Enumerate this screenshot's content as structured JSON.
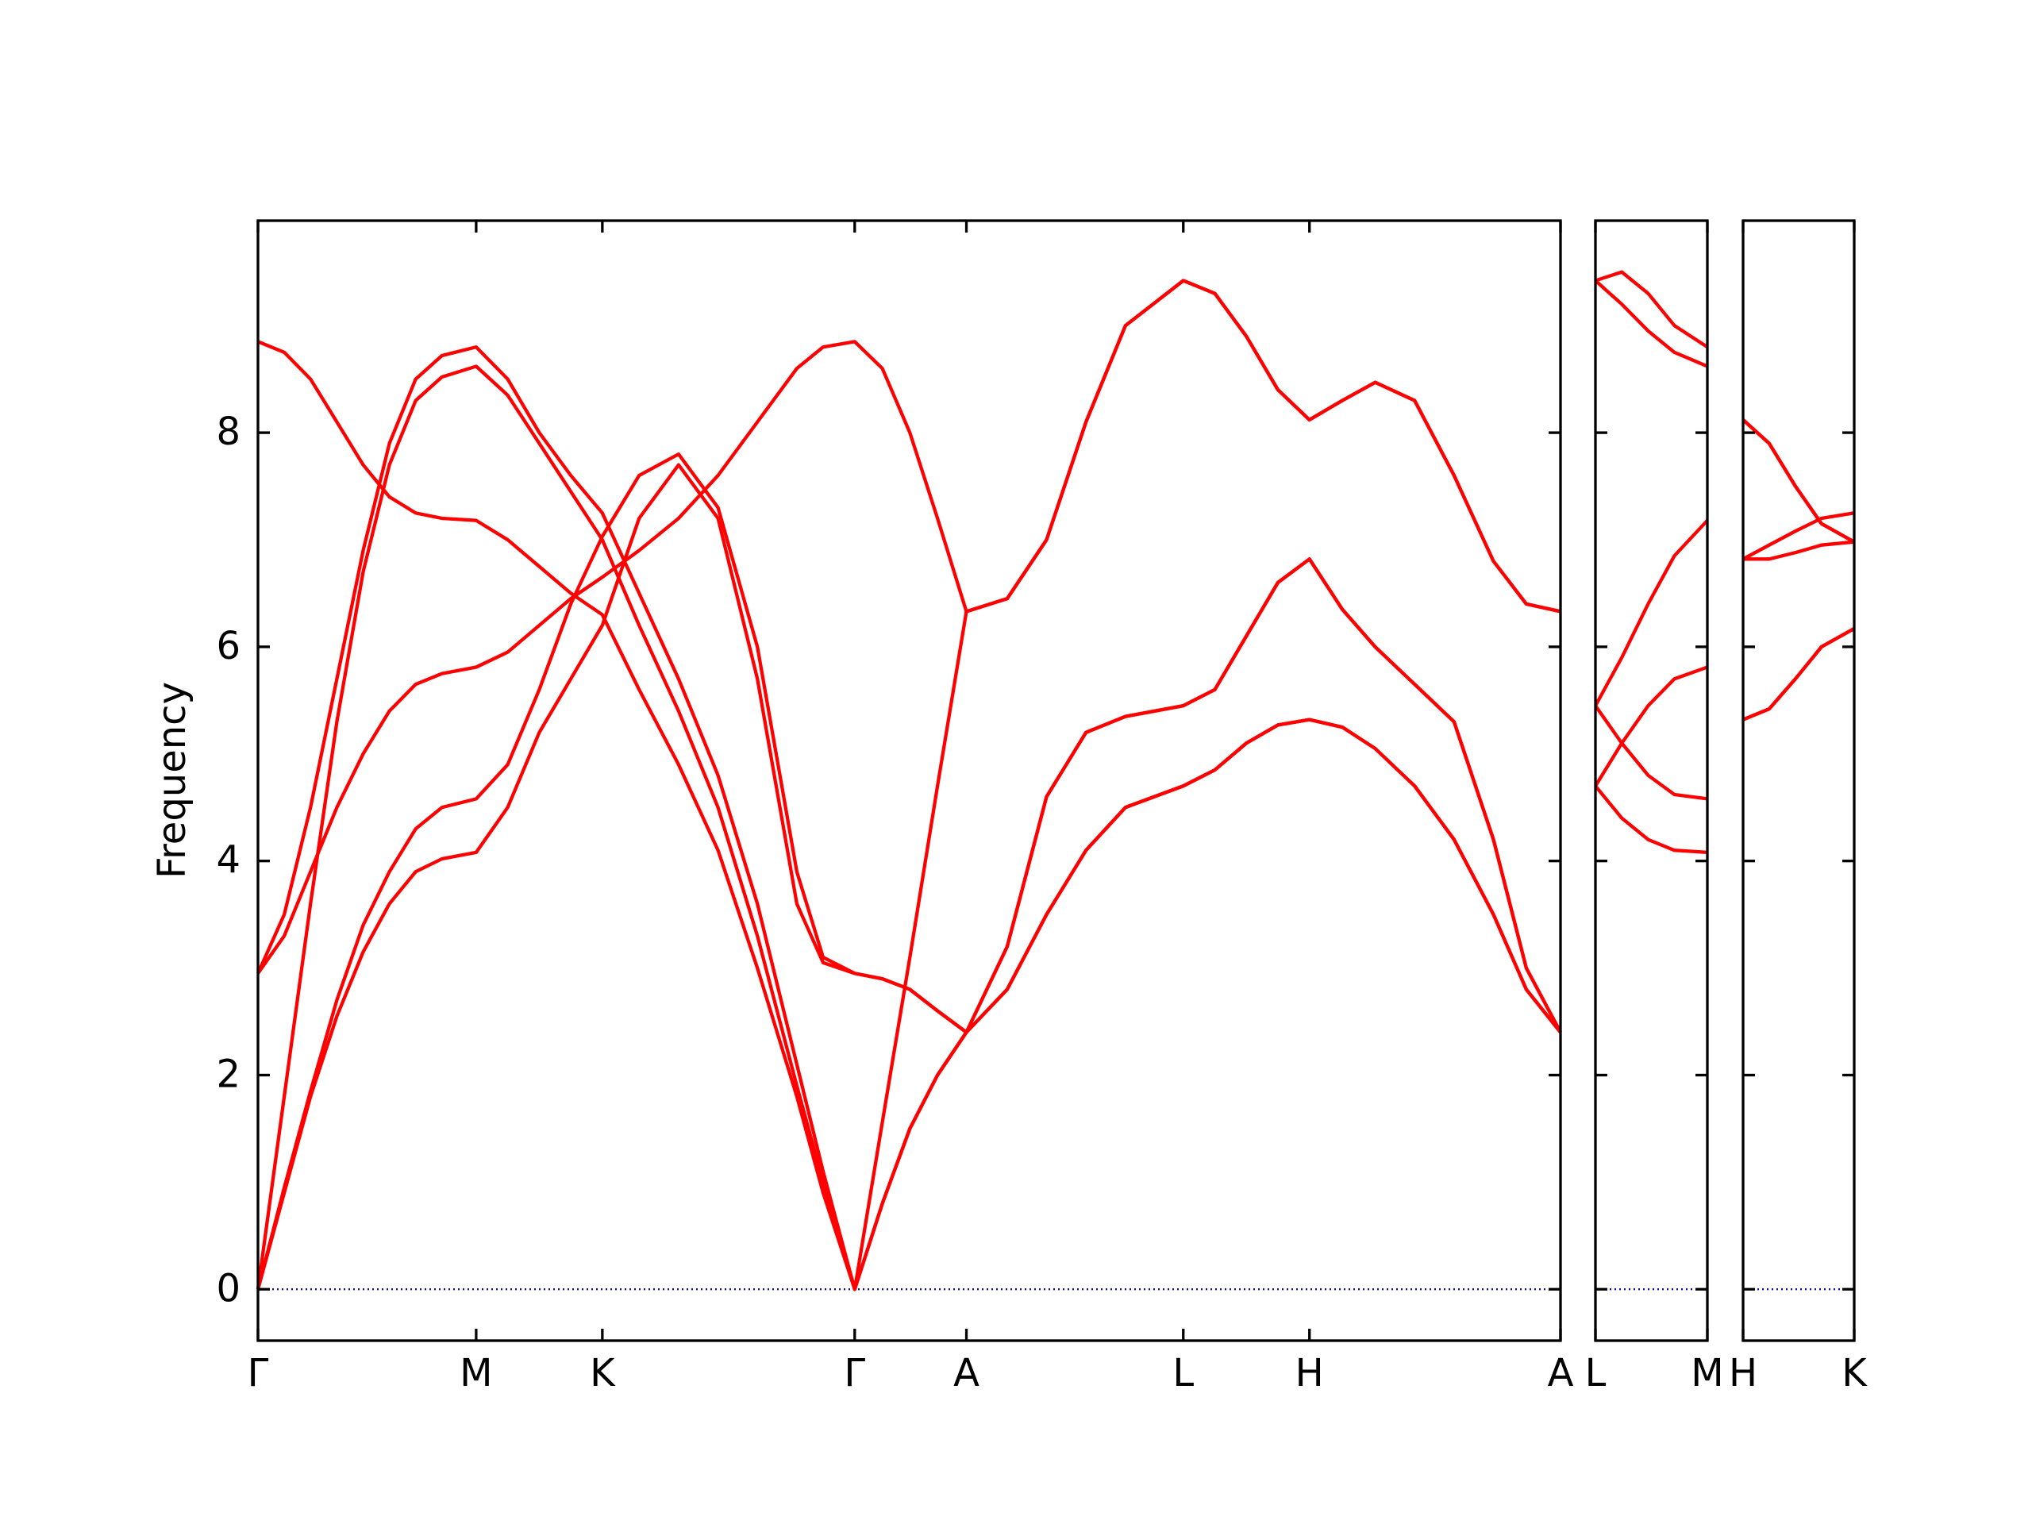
{
  "chart_data": [
    {
      "type": "line",
      "ylabel": "Frequency",
      "xlim": [
        0,
        9.91
      ],
      "xticks": [
        {
          "value": 0,
          "label": "Γ"
        },
        {
          "value": 1.66,
          "label": "M"
        },
        {
          "value": 2.62,
          "label": "K"
        },
        {
          "value": 4.54,
          "label": "Γ"
        },
        {
          "value": 5.39,
          "label": "A"
        },
        {
          "value": 7.04,
          "label": "L"
        },
        {
          "value": 8.0,
          "label": "H"
        },
        {
          "value": 9.91,
          "label": "A"
        }
      ],
      "ylim": [
        -0.48,
        9.98
      ],
      "yticks": [
        0,
        2,
        4,
        6,
        8
      ],
      "reference_line": {
        "value": 0,
        "color": "#0000cc"
      },
      "x": [
        0,
        0.2,
        0.4,
        0.6,
        0.8,
        1.0,
        1.2,
        1.4,
        1.66,
        1.9,
        2.14,
        2.38,
        2.62,
        2.9,
        3.2,
        3.5,
        3.8,
        4.1,
        4.3,
        4.54,
        4.75,
        4.96,
        5.17,
        5.39,
        5.7,
        6.0,
        6.3,
        6.6,
        7.04,
        7.28,
        7.52,
        7.76,
        8.0,
        8.25,
        8.5,
        8.8,
        9.1,
        9.4,
        9.65,
        9.91
      ],
      "series": [
        {
          "color": "#ff0000",
          "values": [
            8.85,
            8.75,
            8.5,
            8.1,
            7.7,
            7.4,
            7.25,
            7.2,
            7.18,
            7.0,
            6.75,
            6.5,
            6.3,
            5.6,
            4.9,
            4.1,
            3.0,
            1.8,
            0.9,
            0,
            0.8,
            1.5,
            2.0,
            2.4,
            2.8,
            3.5,
            4.1,
            4.5,
            4.7,
            4.85,
            5.1,
            5.27,
            5.32,
            5.25,
            5.05,
            4.7,
            4.2,
            3.5,
            2.8,
            2.4
          ]
        },
        {
          "color": "#ff0000",
          "values": [
            2.95,
            3.5,
            4.5,
            5.7,
            6.9,
            7.9,
            8.5,
            8.72,
            8.8,
            8.5,
            8.0,
            7.6,
            7.25,
            6.5,
            5.7,
            4.8,
            3.6,
            2.1,
            1.1,
            0,
            1.56,
            3.1,
            4.7,
            6.33,
            6.45,
            7.0,
            8.1,
            9.0,
            9.42,
            9.3,
            8.9,
            8.4,
            8.12,
            8.3,
            8.47,
            8.3,
            7.6,
            6.8,
            6.4,
            6.33
          ]
        },
        {
          "color": "#ff0000",
          "values": [
            0,
            1.8,
            3.6,
            5.3,
            6.7,
            7.7,
            8.3,
            8.52,
            8.62,
            8.35,
            7.9,
            7.45,
            7.0,
            6.2,
            5.4,
            4.5,
            3.3,
            1.9,
            1.0,
            0,
            0.8,
            1.5,
            2.0,
            2.4,
            2.8,
            3.5,
            4.1,
            4.5,
            4.7,
            4.85,
            5.1,
            5.27,
            5.32,
            5.25,
            5.05,
            4.7,
            4.2,
            3.5,
            2.8,
            2.4
          ]
        },
        {
          "color": "#ff0000",
          "values": [
            2.95,
            3.3,
            3.9,
            4.5,
            5.0,
            5.4,
            5.65,
            5.75,
            5.81,
            5.95,
            6.2,
            6.45,
            6.65,
            6.9,
            7.2,
            7.6,
            8.1,
            8.6,
            8.8,
            8.85,
            8.6,
            8.0,
            7.2,
            6.33,
            6.45,
            7.0,
            8.1,
            9.0,
            9.42,
            9.3,
            8.9,
            8.4,
            8.12,
            8.3,
            8.47,
            8.3,
            7.6,
            6.8,
            6.4,
            6.33
          ]
        },
        {
          "color": "#ff0000",
          "values": [
            0,
            0.95,
            1.85,
            2.7,
            3.4,
            3.9,
            4.3,
            4.5,
            4.58,
            4.9,
            5.6,
            6.4,
            7.03,
            7.6,
            7.8,
            7.3,
            6.0,
            3.9,
            3.1,
            2.95,
            2.9,
            2.8,
            2.6,
            2.4,
            3.2,
            4.6,
            5.2,
            5.35,
            5.45,
            5.6,
            6.1,
            6.6,
            6.82,
            6.35,
            6.0,
            5.65,
            5.3,
            4.2,
            3.0,
            2.4
          ]
        },
        {
          "color": "#ff0000",
          "values": [
            0,
            0.9,
            1.8,
            2.55,
            3.15,
            3.6,
            3.9,
            4.02,
            4.08,
            4.5,
            5.2,
            5.7,
            6.2,
            7.2,
            7.7,
            7.2,
            5.7,
            3.6,
            3.05,
            2.95,
            2.9,
            2.8,
            2.6,
            2.4,
            3.2,
            4.6,
            5.2,
            5.35,
            5.45,
            5.6,
            6.1,
            6.6,
            6.82,
            6.35,
            6.0,
            5.65,
            5.3,
            4.2,
            3.0,
            2.4
          ]
        }
      ]
    },
    {
      "type": "line",
      "sharey": true,
      "xlim": [
        0,
        0.85
      ],
      "xticks": [
        {
          "value": 0,
          "label": "L"
        },
        {
          "value": 0.85,
          "label": "M"
        }
      ],
      "x": [
        0,
        0.2,
        0.4,
        0.6,
        0.85
      ],
      "series": [
        {
          "color": "#ff0000",
          "values": [
            9.42,
            9.5,
            9.3,
            9.0,
            8.8
          ]
        },
        {
          "color": "#ff0000",
          "values": [
            9.42,
            9.2,
            8.95,
            8.75,
            8.62
          ]
        },
        {
          "color": "#ff0000",
          "values": [
            5.45,
            5.9,
            6.4,
            6.85,
            7.18
          ]
        },
        {
          "color": "#ff0000",
          "values": [
            4.7,
            5.1,
            5.45,
            5.7,
            5.81
          ]
        },
        {
          "color": "#ff0000",
          "values": [
            5.45,
            5.1,
            4.8,
            4.62,
            4.58
          ]
        },
        {
          "color": "#ff0000",
          "values": [
            4.7,
            4.4,
            4.2,
            4.1,
            4.08
          ]
        }
      ]
    },
    {
      "type": "line",
      "sharey": true,
      "xlim": [
        0,
        0.85
      ],
      "xticks": [
        {
          "value": 0,
          "label": "H"
        },
        {
          "value": 0.85,
          "label": "K"
        }
      ],
      "x": [
        0,
        0.2,
        0.4,
        0.6,
        0.85
      ],
      "series": [
        {
          "color": "#ff0000",
          "values": [
            8.12,
            7.9,
            7.5,
            7.15,
            6.98
          ]
        },
        {
          "color": "#ff0000",
          "values": [
            8.12,
            7.9,
            7.5,
            7.15,
            6.98
          ]
        },
        {
          "color": "#ff0000",
          "values": [
            6.82,
            6.95,
            7.08,
            7.2,
            7.25
          ]
        },
        {
          "color": "#ff0000",
          "values": [
            6.82,
            6.82,
            6.88,
            6.95,
            6.98
          ]
        },
        {
          "color": "#ff0000",
          "values": [
            5.32,
            5.42,
            5.7,
            6.0,
            6.17
          ]
        },
        {
          "color": "#ff0000",
          "values": [
            5.32,
            5.42,
            5.7,
            6.0,
            6.17
          ]
        }
      ]
    }
  ]
}
